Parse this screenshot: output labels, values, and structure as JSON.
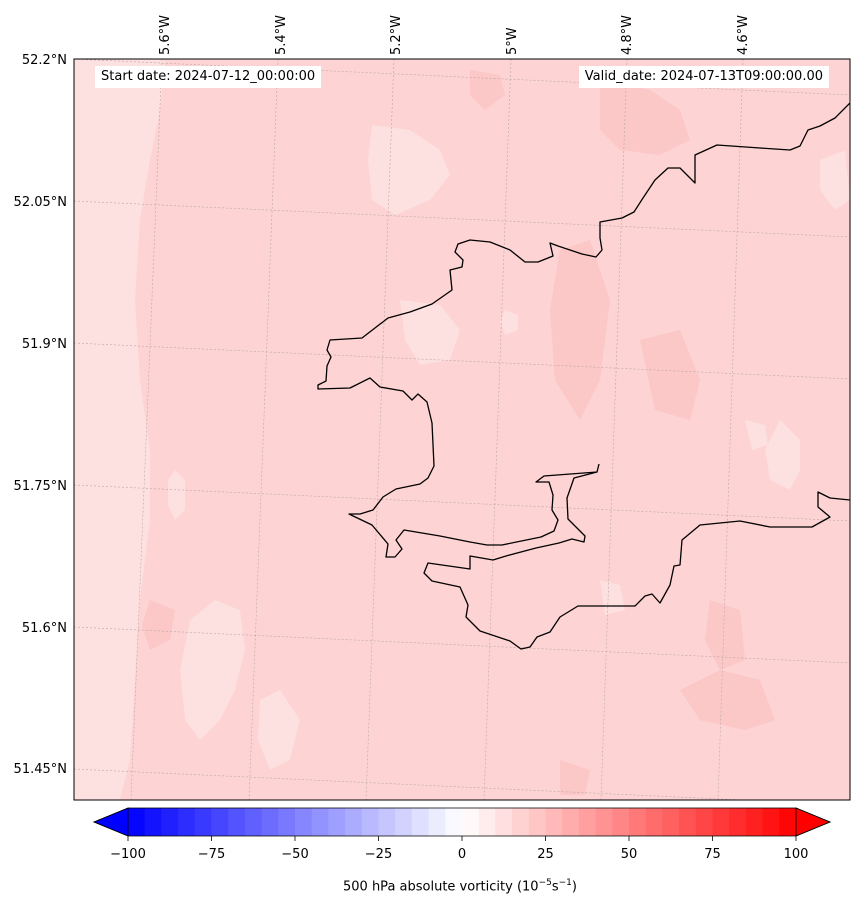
{
  "info": {
    "start_date": "Start date: 2024-07-12_00:00:00",
    "valid_date": "Valid_date: 2024-07-13T09:00:00.00"
  },
  "map": {
    "lon_labels": [
      "5.6°W",
      "5.4°W",
      "5.2°W",
      "5°W",
      "4.8°W",
      "4.6°W"
    ],
    "lat_labels": [
      "52.2°N",
      "52.05°N",
      "51.9°N",
      "51.75°N",
      "51.6°N",
      "51.45°N"
    ],
    "field_base_color": "#fdd3d3",
    "field_light_color": "#fde0e0",
    "field_dark_color": "#fbc7c7"
  },
  "colorbar": {
    "ticks": [
      "−100",
      "−75",
      "−50",
      "−25",
      "0",
      "25",
      "50",
      "75",
      "100"
    ],
    "min": -100,
    "max": 100,
    "label_text": "500 hPa absolute vorticity (10",
    "label_exp1": "−5",
    "label_mid": "s",
    "label_exp2": "−1",
    "label_end": ")"
  }
}
